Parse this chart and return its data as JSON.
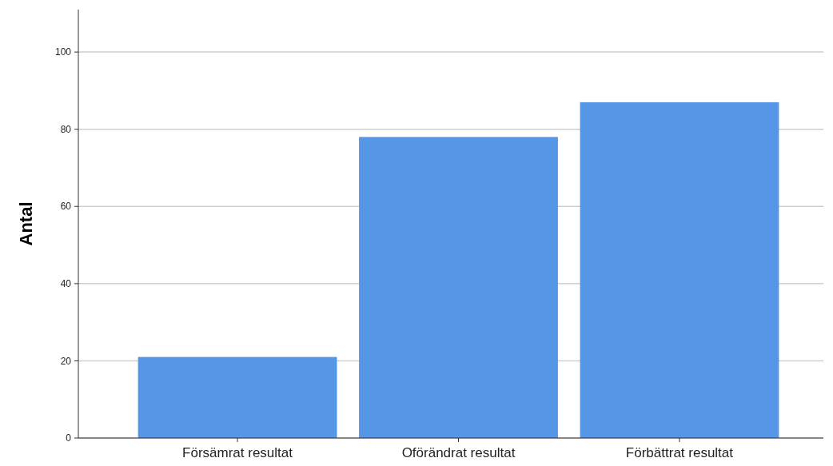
{
  "chart_data": {
    "type": "bar",
    "ylabel": "Antal",
    "categories": [
      "Försämrat resultat",
      "Oförändrat resultat",
      "Förbättrat resultat"
    ],
    "values": [
      21,
      78,
      87
    ],
    "color": "#5596e6",
    "ylim": [
      0,
      111
    ],
    "yticks": [
      0,
      20,
      40,
      60,
      80,
      100
    ],
    "grid": "y"
  }
}
